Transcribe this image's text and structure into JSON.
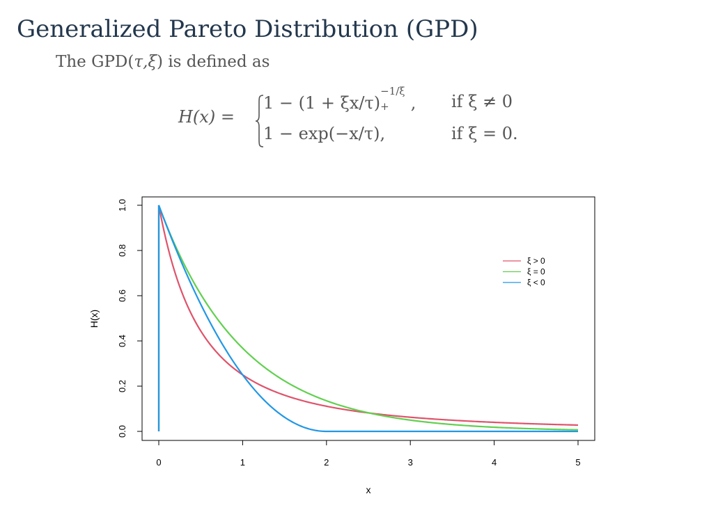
{
  "slide": {
    "title": "Generalized Pareto Distribution (GPD)",
    "intro_prefix": "The GPD(",
    "intro_params": "τ,ξ",
    "intro_suffix": ") is defined as"
  },
  "formula": {
    "lhs": "H(x) =",
    "case1_expr": "1 − (1 + ξx/τ)",
    "case1_sup": "−1/ξ",
    "case1_sub": "+",
    "case1_punct": " ,",
    "case1_cond": "if ξ ≠ 0",
    "case2_expr": "1 − exp(−x/τ),",
    "case2_cond": "if ξ = 0."
  },
  "chart_data": {
    "type": "line",
    "xlabel": "x",
    "ylabel": "H(x)",
    "xlim": [
      0,
      5
    ],
    "ylim": [
      0,
      1
    ],
    "xticks": [
      "0",
      "1",
      "2",
      "3",
      "4",
      "5"
    ],
    "yticks": [
      "0.0",
      "0.2",
      "0.4",
      "0.6",
      "0.8",
      "1.0"
    ],
    "grid": false,
    "legend_position": "right",
    "series": [
      {
        "name": "ξ > 0",
        "color": "#df536b",
        "xi": 0.5,
        "tau": 0.5
      },
      {
        "name": "ξ = 0",
        "color": "#61d04f",
        "xi": 0,
        "tau": 1
      },
      {
        "name": "ξ < 0",
        "color": "#2297e6",
        "xi": -0.5,
        "tau": 1
      }
    ]
  }
}
